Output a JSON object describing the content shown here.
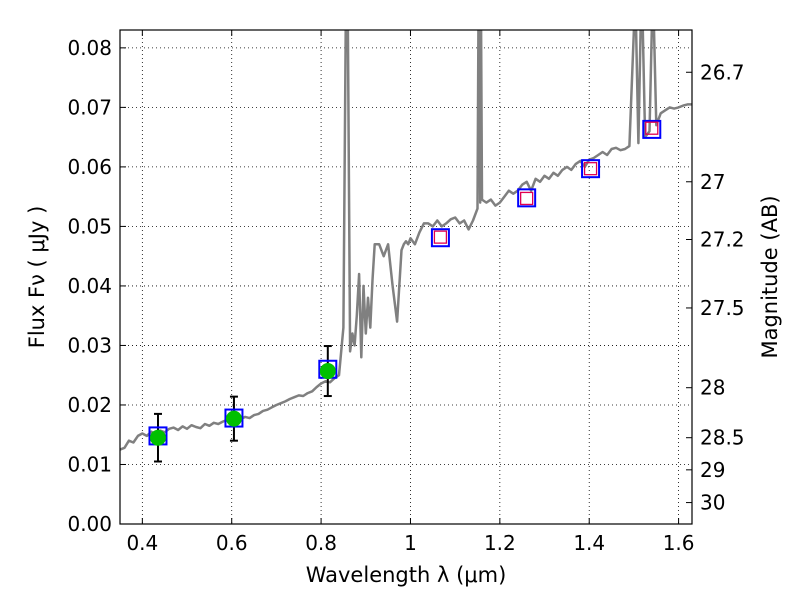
{
  "chart_data": {
    "type": "line",
    "xlabel": "Wavelength  λ (μm)",
    "ylabel": "Flux  Fν  ( μJy )",
    "ylabel_right": "Magnitude (AB)",
    "xlim": [
      0.35,
      1.63
    ],
    "ylim": [
      0.0,
      0.083
    ],
    "grid": true,
    "x_ticks": [
      0.4,
      0.6,
      0.8,
      1.0,
      1.2,
      1.4,
      1.6
    ],
    "x_tick_labels": [
      "0.4",
      "0.6",
      "0.8",
      "1",
      "1.2",
      "1.4",
      "1.6"
    ],
    "y_ticks": [
      0.0,
      0.01,
      0.02,
      0.03,
      0.04,
      0.05,
      0.06,
      0.07,
      0.08
    ],
    "y_tick_labels": [
      "0.00",
      "0.01",
      "0.02",
      "0.03",
      "0.04",
      "0.05",
      "0.06",
      "0.07",
      "0.08"
    ],
    "right_axis_ticks": [
      {
        "label": "26.7",
        "flux": 0.0759
      },
      {
        "label": "27",
        "flux": 0.0575
      },
      {
        "label": "27.2",
        "flux": 0.0478
      },
      {
        "label": "27.5",
        "flux": 0.0363
      },
      {
        "label": "28",
        "flux": 0.0229
      },
      {
        "label": "28.5",
        "flux": 0.0145
      },
      {
        "label": "29",
        "flux": 0.0091
      },
      {
        "label": "30",
        "flux": 0.0036
      }
    ],
    "series": [
      {
        "type": "line",
        "color": "#808080",
        "x": [
          0.35,
          0.36,
          0.37,
          0.38,
          0.39,
          0.4,
          0.41,
          0.42,
          0.43,
          0.44,
          0.45,
          0.46,
          0.47,
          0.48,
          0.49,
          0.5,
          0.51,
          0.52,
          0.53,
          0.54,
          0.55,
          0.56,
          0.57,
          0.58,
          0.59,
          0.6,
          0.61,
          0.62,
          0.63,
          0.64,
          0.65,
          0.66,
          0.67,
          0.68,
          0.69,
          0.7,
          0.71,
          0.72,
          0.73,
          0.74,
          0.75,
          0.76,
          0.77,
          0.78,
          0.79,
          0.8,
          0.81,
          0.82,
          0.83,
          0.84,
          0.85,
          0.855,
          0.86,
          0.865,
          0.87,
          0.875,
          0.88,
          0.885,
          0.89,
          0.895,
          0.9,
          0.905,
          0.91,
          0.915,
          0.92,
          0.93,
          0.94,
          0.95,
          0.96,
          0.97,
          0.98,
          0.985,
          0.99,
          0.995,
          1.0,
          1.01,
          1.02,
          1.03,
          1.04,
          1.05,
          1.06,
          1.07,
          1.08,
          1.09,
          1.1,
          1.11,
          1.12,
          1.13,
          1.14,
          1.15,
          1.152,
          1.154,
          1.156,
          1.158,
          1.16,
          1.17,
          1.18,
          1.19,
          1.2,
          1.21,
          1.22,
          1.23,
          1.24,
          1.25,
          1.26,
          1.27,
          1.28,
          1.29,
          1.3,
          1.31,
          1.32,
          1.33,
          1.34,
          1.35,
          1.36,
          1.37,
          1.38,
          1.39,
          1.4,
          1.41,
          1.42,
          1.43,
          1.44,
          1.45,
          1.46,
          1.47,
          1.48,
          1.49,
          1.5,
          1.505,
          1.51,
          1.515,
          1.52,
          1.525,
          1.53,
          1.535,
          1.54,
          1.545,
          1.55,
          1.555,
          1.56,
          1.57,
          1.58,
          1.59,
          1.6,
          1.61,
          1.62,
          1.63
        ],
        "y": [
          0.0125,
          0.0128,
          0.014,
          0.0137,
          0.0148,
          0.0152,
          0.0148,
          0.0155,
          0.015,
          0.0157,
          0.0154,
          0.016,
          0.0162,
          0.0158,
          0.0164,
          0.016,
          0.0166,
          0.0163,
          0.0161,
          0.0168,
          0.0165,
          0.017,
          0.0168,
          0.0172,
          0.0175,
          0.0173,
          0.0172,
          0.0176,
          0.018,
          0.0178,
          0.0183,
          0.0185,
          0.019,
          0.0192,
          0.0196,
          0.02,
          0.0203,
          0.0206,
          0.021,
          0.0213,
          0.0216,
          0.0215,
          0.022,
          0.0223,
          0.023,
          0.0236,
          0.024,
          0.0238,
          0.0245,
          0.025,
          0.033,
          0.083,
          0.083,
          0.029,
          0.032,
          0.03,
          0.035,
          0.042,
          0.028,
          0.04,
          0.032,
          0.038,
          0.033,
          0.041,
          0.047,
          0.047,
          0.045,
          0.047,
          0.04,
          0.034,
          0.046,
          0.047,
          0.0475,
          0.047,
          0.048,
          0.047,
          0.049,
          0.0505,
          0.0505,
          0.05,
          0.051,
          0.05,
          0.0505,
          0.0512,
          0.0515,
          0.0505,
          0.051,
          0.0495,
          0.051,
          0.053,
          0.083,
          0.083,
          0.054,
          0.083,
          0.0545,
          0.054,
          0.0545,
          0.0535,
          0.054,
          0.055,
          0.056,
          0.0555,
          0.056,
          0.057,
          0.0575,
          0.056,
          0.058,
          0.0575,
          0.0585,
          0.058,
          0.059,
          0.0585,
          0.0595,
          0.06,
          0.0595,
          0.0605,
          0.061,
          0.06,
          0.0612,
          0.0615,
          0.062,
          0.0625,
          0.062,
          0.063,
          0.0632,
          0.0628,
          0.063,
          0.0635,
          0.083,
          0.083,
          0.064,
          0.083,
          0.083,
          0.065,
          0.0655,
          0.066,
          0.083,
          0.083,
          0.067,
          0.068,
          0.069,
          0.0695,
          0.07,
          0.0698,
          0.07,
          0.0703,
          0.0705,
          0.0705
        ]
      },
      {
        "type": "points",
        "name": "blue-squares",
        "edgecolor": "#0000ff",
        "x": [
          0.435,
          0.605,
          0.815,
          1.067,
          1.26,
          1.403,
          1.54
        ],
        "y": [
          0.0148,
          0.0178,
          0.026,
          0.0481,
          0.0548,
          0.0597,
          0.0663
        ]
      },
      {
        "type": "points",
        "name": "red-squares",
        "edgecolor": "#e00050",
        "x": [
          1.067,
          1.26,
          1.403,
          1.54
        ],
        "y": [
          0.0482,
          0.0547,
          0.0597,
          0.0665
        ]
      },
      {
        "type": "points",
        "name": "green-circles",
        "color": "#00c000",
        "x": [
          0.435,
          0.605,
          0.815
        ],
        "y": [
          0.0145,
          0.0177,
          0.0257
        ],
        "yerr": [
          0.004,
          0.0037,
          0.0042
        ]
      }
    ]
  }
}
